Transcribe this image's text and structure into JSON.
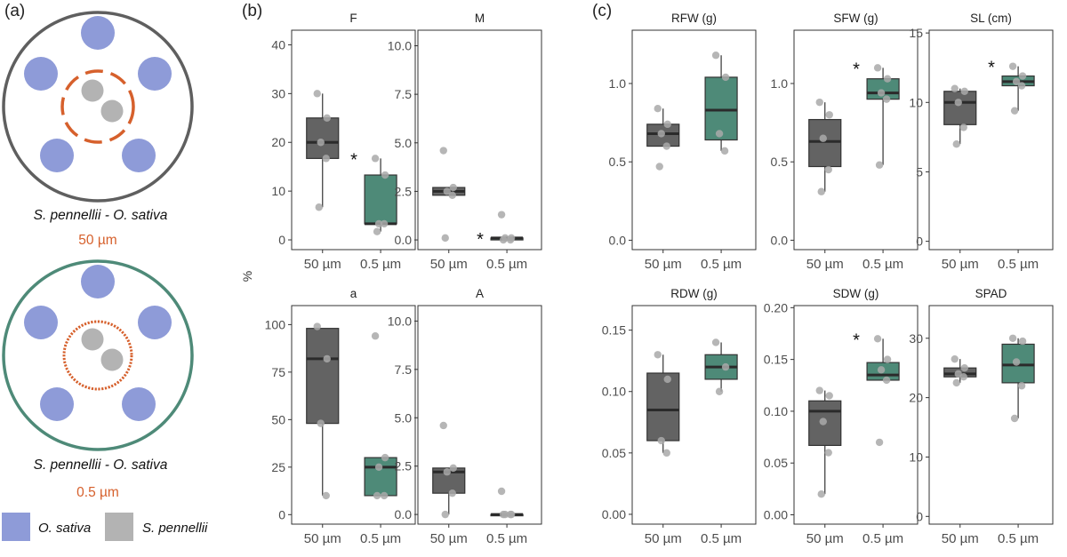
{
  "panel_labels": [
    "(a)",
    "(b)",
    "(c)"
  ],
  "schematic": {
    "dishes": [
      {
        "label": "S. pennellii - O. sativa",
        "mesh": "50 µm",
        "ring_color": "#5f5f5f",
        "mesh_style": "dashed"
      },
      {
        "label": "S. pennellii - O. sativa",
        "mesh": "0.5 µm",
        "ring_color": "#4e8a78",
        "mesh_style": "dotted"
      }
    ],
    "legend": [
      {
        "label": "O. sativa",
        "color": "#8e9bd8"
      },
      {
        "label": "S. pennellii",
        "color": "#b3b3b3"
      }
    ],
    "mesh_color": "#d6602c"
  },
  "shared_ylabel": "%",
  "colors": {
    "group_50": "#636363",
    "group_05": "#4e8a78",
    "point": "#a9a9a9",
    "median": "#2b2b2b"
  },
  "chart_data": [
    {
      "type": "box",
      "panel": "b",
      "title": "F",
      "categories": [
        "50 µm",
        "0.5 µm"
      ],
      "ylim": [
        -2,
        43
      ],
      "yticks": [
        0,
        10,
        20,
        30,
        40
      ],
      "ytick_labels": [
        "0",
        "10",
        "20",
        "30",
        "40"
      ],
      "boxes": [
        {
          "min": 6.7,
          "q1": 16.7,
          "median": 20,
          "q3": 25,
          "max": 30,
          "points": [
            30,
            25,
            20,
            16.7,
            6.7
          ]
        },
        {
          "min": 1.7,
          "q1": 3.3,
          "median": 3.3,
          "q3": 13.3,
          "max": 16.7,
          "points": [
            16.7,
            13.3,
            3.3,
            3.3,
            1.7
          ]
        }
      ],
      "annotation": "*"
    },
    {
      "type": "box",
      "panel": "b",
      "title": "M",
      "categories": [
        "50 µm",
        "0.5 µm"
      ],
      "ylim": [
        -0.5,
        10.8
      ],
      "yticks": [
        0,
        2.5,
        5,
        7.5,
        10
      ],
      "ytick_labels": [
        "0.0",
        "2.5",
        "5.0",
        "7.5",
        "10.0"
      ],
      "boxes": [
        {
          "min": 2.3,
          "q1": 2.3,
          "median": 2.5,
          "q3": 2.7,
          "max": 2.7,
          "points": [
            4.6,
            2.7,
            2.5,
            2.3,
            0.1
          ]
        },
        {
          "min": 0,
          "q1": 0,
          "median": 0.1,
          "q3": 0.1,
          "max": 0.1,
          "points": [
            1.3,
            0.1,
            0.1,
            0,
            0
          ]
        }
      ],
      "annotation": "*"
    },
    {
      "type": "box",
      "panel": "b",
      "title": "a",
      "categories": [
        "50 µm",
        "0.5 µm"
      ],
      "ylim": [
        -5,
        110
      ],
      "yticks": [
        0,
        25,
        50,
        75,
        100
      ],
      "ytick_labels": [
        "0",
        "25",
        "50",
        "75",
        "100"
      ],
      "boxes": [
        {
          "min": 10,
          "q1": 48,
          "median": 82,
          "q3": 98,
          "max": 98,
          "points": [
            99,
            82,
            48,
            10
          ]
        },
        {
          "min": 10,
          "q1": 10,
          "median": 25,
          "q3": 30,
          "max": 30,
          "points": [
            94,
            30,
            25,
            10,
            10
          ]
        }
      ],
      "annotation": ""
    },
    {
      "type": "box",
      "panel": "b",
      "title": "A",
      "categories": [
        "50 µm",
        "0.5 µm"
      ],
      "ylim": [
        -0.5,
        10.8
      ],
      "yticks": [
        0,
        2.5,
        5,
        7.5,
        10
      ],
      "ytick_labels": [
        "0.0",
        "2.5",
        "5.0",
        "7.5",
        "10.0"
      ],
      "boxes": [
        {
          "min": 0,
          "q1": 1.1,
          "median": 2.2,
          "q3": 2.4,
          "max": 2.4,
          "points": [
            4.6,
            2.4,
            2.2,
            1.1,
            0
          ]
        },
        {
          "min": 0,
          "q1": 0,
          "median": 0,
          "q3": 0,
          "max": 0,
          "points": [
            1.2,
            0,
            0,
            0,
            0
          ]
        }
      ],
      "annotation": ""
    },
    {
      "type": "box",
      "panel": "c",
      "title": "RFW (g)",
      "categories": [
        "50 µm",
        "0.5 µm"
      ],
      "ylim": [
        -0.06,
        1.34
      ],
      "yticks": [
        0,
        0.5,
        1
      ],
      "ytick_labels": [
        "0.0",
        "0.5",
        "1.0"
      ],
      "boxes": [
        {
          "min": 0.6,
          "q1": 0.6,
          "median": 0.68,
          "q3": 0.74,
          "max": 0.84,
          "points": [
            0.84,
            0.74,
            0.68,
            0.6,
            0.47
          ]
        },
        {
          "min": 0.57,
          "q1": 0.64,
          "median": 0.83,
          "q3": 1.04,
          "max": 1.18,
          "points": [
            1.18,
            1.04,
            0.68,
            0.57
          ]
        }
      ],
      "annotation": ""
    },
    {
      "type": "box",
      "panel": "c",
      "title": "SFW (g)",
      "categories": [
        "50 µm",
        "0.5 µm"
      ],
      "ylim": [
        -0.06,
        1.34
      ],
      "yticks": [
        0,
        0.5,
        1
      ],
      "ytick_labels": [
        "0.0",
        "0.5",
        "1.0"
      ],
      "boxes": [
        {
          "min": 0.31,
          "q1": 0.47,
          "median": 0.63,
          "q3": 0.77,
          "max": 0.88,
          "points": [
            0.88,
            0.8,
            0.65,
            0.45,
            0.31
          ]
        },
        {
          "min": 0.48,
          "q1": 0.9,
          "median": 0.94,
          "q3": 1.03,
          "max": 1.1,
          "points": [
            1.1,
            1.03,
            0.94,
            0.9,
            0.48
          ]
        }
      ],
      "annotation": "*"
    },
    {
      "type": "box",
      "panel": "c",
      "title": "SL (cm)",
      "categories": [
        "50 µm",
        "0.5 µm"
      ],
      "ylim": [
        -0.6,
        15.2
      ],
      "yticks": [
        0,
        5,
        10,
        15
      ],
      "ytick_labels": [
        "0",
        "5",
        "10",
        "15"
      ],
      "boxes": [
        {
          "min": 7,
          "q1": 8.4,
          "median": 10,
          "q3": 10.8,
          "max": 11,
          "points": [
            11,
            10.8,
            10,
            8.2,
            7
          ]
        },
        {
          "min": 9.4,
          "q1": 11.2,
          "median": 11.5,
          "q3": 11.9,
          "max": 12.6,
          "points": [
            12.6,
            11.9,
            11.5,
            11.2,
            9.4
          ]
        }
      ],
      "annotation": "*"
    },
    {
      "type": "box",
      "panel": "c",
      "title": "RDW (g)",
      "categories": [
        "50 µm",
        "0.5 µm"
      ],
      "ylim": [
        -0.008,
        0.17
      ],
      "yticks": [
        0,
        0.05,
        0.1,
        0.15
      ],
      "ytick_labels": [
        "0.00",
        "0.05",
        "0.10",
        "0.15"
      ],
      "boxes": [
        {
          "min": 0.05,
          "q1": 0.06,
          "median": 0.085,
          "q3": 0.115,
          "max": 0.13,
          "points": [
            0.13,
            0.11,
            0.06,
            0.05
          ]
        },
        {
          "min": 0.1,
          "q1": 0.11,
          "median": 0.12,
          "q3": 0.13,
          "max": 0.14,
          "points": [
            0.14,
            0.12,
            0.1
          ]
        }
      ],
      "annotation": ""
    },
    {
      "type": "box",
      "panel": "c",
      "title": "SDW (g)",
      "categories": [
        "50 µm",
        "0.5 µm"
      ],
      "ylim": [
        -0.009,
        0.202
      ],
      "yticks": [
        0,
        0.05,
        0.1,
        0.15,
        0.2
      ],
      "ytick_labels": [
        "0.00",
        "0.05",
        "0.10",
        "0.15",
        "0.20"
      ],
      "boxes": [
        {
          "min": 0.02,
          "q1": 0.067,
          "median": 0.1,
          "q3": 0.11,
          "max": 0.12,
          "points": [
            0.12,
            0.115,
            0.09,
            0.06,
            0.02
          ]
        },
        {
          "min": 0.13,
          "q1": 0.13,
          "median": 0.135,
          "q3": 0.147,
          "max": 0.17,
          "points": [
            0.17,
            0.15,
            0.14,
            0.13,
            0.07
          ]
        }
      ],
      "annotation": "*"
    },
    {
      "type": "box",
      "panel": "c",
      "title": "SPAD",
      "categories": [
        "50 µm",
        "0.5 µm"
      ],
      "ylim": [
        -1.3,
        35.5
      ],
      "yticks": [
        0,
        10,
        20,
        30
      ],
      "ytick_labels": [
        "0",
        "10",
        "20",
        "30"
      ],
      "boxes": [
        {
          "min": 22.5,
          "q1": 23.5,
          "median": 24,
          "q3": 25,
          "max": 26.5,
          "points": [
            26.5,
            25,
            24,
            23.5,
            22.5
          ]
        },
        {
          "min": 16.5,
          "q1": 22.5,
          "median": 25.5,
          "q3": 29,
          "max": 30,
          "points": [
            30,
            29.5,
            26,
            22,
            16.5
          ]
        }
      ],
      "annotation": ""
    }
  ]
}
